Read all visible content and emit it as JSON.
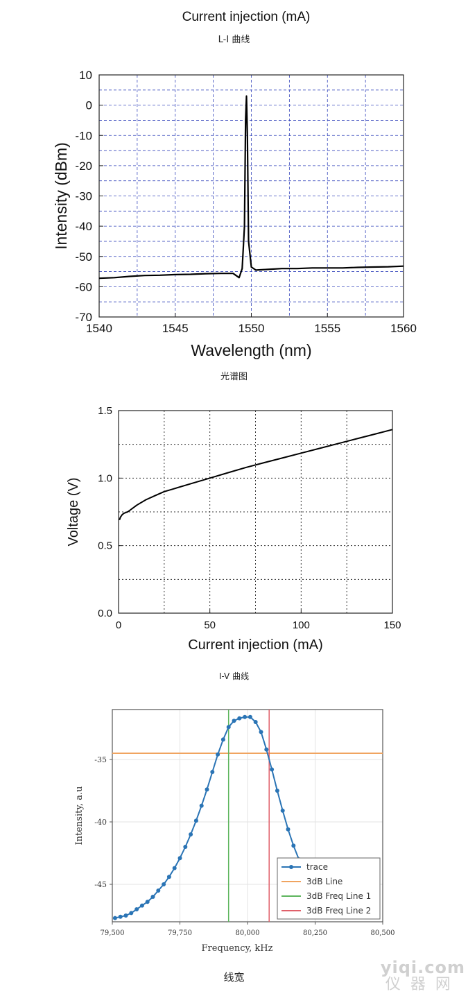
{
  "captions": {
    "li": "L-I 曲线",
    "spectrum": "光谱图",
    "iv": "I-V 曲线",
    "linewidth": "线宽"
  },
  "watermark": {
    "top": "yiqi.com",
    "bottom": "仪器网"
  },
  "chart_data": [
    {
      "id": "li_partial",
      "type": "line",
      "title": "",
      "xlabel": "Current injection (mA)",
      "ylabel": "",
      "note": "top portion cropped; only the x-axis label is visible"
    },
    {
      "id": "spectrum",
      "type": "line",
      "title": "",
      "xlabel": "Wavelength (nm)",
      "ylabel": "Intensity (dBm)",
      "xlim": [
        1540,
        1560
      ],
      "ylim": [
        -70,
        10
      ],
      "xticks": [
        1540,
        1545,
        1550,
        1555,
        1560
      ],
      "yticks": [
        10,
        0,
        -10,
        -20,
        -30,
        -40,
        -50,
        -60,
        -70
      ],
      "grid": true,
      "series": [
        {
          "x": [
            1540,
            1541,
            1542,
            1543,
            1544,
            1545,
            1546,
            1547,
            1548,
            1548.8,
            1549.2,
            1549.4,
            1549.55,
            1549.62,
            1549.68,
            1549.74,
            1549.82,
            1550,
            1550.3,
            1551,
            1552,
            1553,
            1554,
            1555,
            1556,
            1557,
            1558,
            1559,
            1560
          ],
          "y": [
            -57.2,
            -57,
            -56.6,
            -56.3,
            -56.2,
            -56,
            -55.9,
            -55.7,
            -55.6,
            -55.6,
            -57,
            -54,
            -40,
            -5,
            3,
            -10,
            -45,
            -53.5,
            -54.5,
            -54.3,
            -54,
            -54,
            -53.8,
            -53.8,
            -53.8,
            -53.6,
            -53.5,
            -53.4,
            -53.2
          ]
        }
      ]
    },
    {
      "id": "iv",
      "type": "line",
      "title": "",
      "xlabel": "Current injection (mA)",
      "ylabel": "Voltage (V)",
      "xlim": [
        0,
        150
      ],
      "ylim": [
        0,
        1.5
      ],
      "xticks": [
        0,
        50,
        100,
        150
      ],
      "yticks": [
        0.0,
        0.5,
        1.0,
        1.5
      ],
      "ytick_labels": [
        "0.0",
        "0.5",
        "1.0",
        "1.5"
      ],
      "grid": true,
      "series": [
        {
          "x": [
            0.5,
            1,
            2,
            3,
            5,
            8,
            10,
            15,
            20,
            25,
            30,
            40,
            50,
            60,
            70,
            80,
            90,
            100,
            110,
            120,
            130,
            140,
            150
          ],
          "y": [
            0.69,
            0.71,
            0.73,
            0.74,
            0.75,
            0.78,
            0.8,
            0.84,
            0.87,
            0.9,
            0.92,
            0.96,
            1.0,
            1.04,
            1.08,
            1.115,
            1.15,
            1.185,
            1.22,
            1.255,
            1.29,
            1.325,
            1.36
          ]
        }
      ]
    },
    {
      "id": "linewidth",
      "type": "scatter",
      "title": "",
      "xlabel": "Frequency, kHz",
      "ylabel": "Intensity, a.u",
      "xlim": [
        79500,
        80500
      ],
      "ylim": [
        -48,
        -31
      ],
      "xticks": [
        79500,
        79750,
        80000,
        80250,
        80500
      ],
      "xtick_labels": [
        "79,500",
        "79,750",
        "80,000",
        "80,250",
        "80,500"
      ],
      "yticks": [
        -35,
        -40,
        -45
      ],
      "grid": true,
      "legend": "bottom-right",
      "series": [
        {
          "name": "trace",
          "color": "#2a74b5",
          "x": [
            79510,
            79530,
            79550,
            79570,
            79590,
            79610,
            79630,
            79650,
            79670,
            79690,
            79710,
            79730,
            79750,
            79770,
            79790,
            79810,
            79830,
            79850,
            79870,
            79890,
            79910,
            79930,
            79950,
            79970,
            79990,
            80010,
            80030,
            80050,
            80070,
            80090,
            80110,
            80130,
            80150,
            80170,
            80190,
            80210,
            80230
          ],
          "y": [
            -47.7,
            -47.6,
            -47.5,
            -47.3,
            -47.0,
            -46.7,
            -46.4,
            -46.0,
            -45.5,
            -45.0,
            -44.4,
            -43.7,
            -42.9,
            -42.0,
            -41.0,
            -39.9,
            -38.7,
            -37.4,
            -36.0,
            -34.6,
            -33.4,
            -32.4,
            -31.9,
            -31.7,
            -31.6,
            -31.6,
            -32.0,
            -32.8,
            -34.2,
            -35.8,
            -37.5,
            -39.1,
            -40.6,
            -41.9,
            -43.0,
            -43.9,
            -44.6
          ]
        },
        {
          "name": "3dB Line",
          "color": "#f0a460",
          "y": -34.5
        },
        {
          "name": "3dB Freq Line 1",
          "color": "#5db55d",
          "x": 79930
        },
        {
          "name": "3dB Freq Line 2",
          "color": "#e0606a",
          "x": 80080
        }
      ]
    }
  ]
}
